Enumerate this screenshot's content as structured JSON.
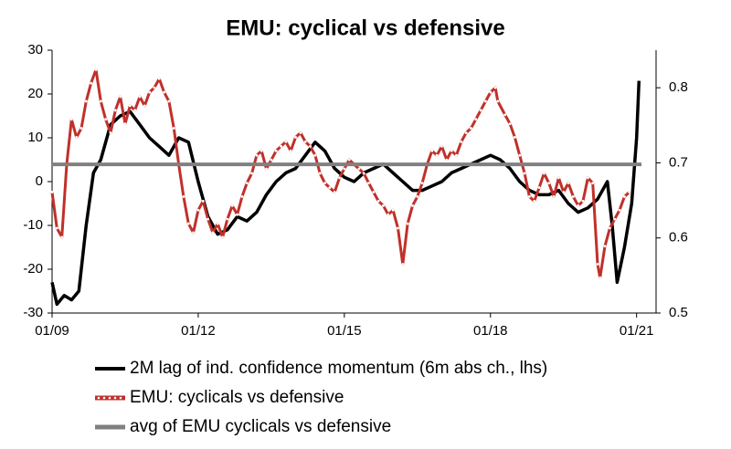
{
  "chart_data": {
    "type": "line",
    "title": "EMU: cyclical vs defensive",
    "xlim": [
      2009,
      2021.4
    ],
    "xticks": [
      {
        "value": 2009,
        "label": "01/09"
      },
      {
        "value": 2012,
        "label": "01/12"
      },
      {
        "value": 2015,
        "label": "01/15"
      },
      {
        "value": 2018,
        "label": "01/18"
      },
      {
        "value": 2021,
        "label": "01/21"
      }
    ],
    "ylim": [
      -30,
      30
    ],
    "yticks": [
      -30,
      -20,
      -10,
      0,
      10,
      20,
      30
    ],
    "y2lim": [
      0.5,
      0.85
    ],
    "y2ticks": [
      0.5,
      0.6,
      0.7,
      0.8
    ],
    "series": [
      {
        "name": "2M lag of ind. confidence momentum (6m abs ch., lhs)",
        "color": "#000000",
        "axis": "y",
        "x": [
          2009.0,
          2009.1,
          2009.25,
          2009.4,
          2009.55,
          2009.7,
          2009.85,
          2010.0,
          2010.2,
          2010.4,
          2010.6,
          2010.8,
          2011.0,
          2011.2,
          2011.4,
          2011.6,
          2011.8,
          2012.0,
          2012.2,
          2012.4,
          2012.6,
          2012.8,
          2013.0,
          2013.2,
          2013.4,
          2013.6,
          2013.8,
          2014.0,
          2014.2,
          2014.4,
          2014.6,
          2014.8,
          2015.0,
          2015.2,
          2015.4,
          2015.6,
          2015.8,
          2016.0,
          2016.2,
          2016.4,
          2016.6,
          2016.8,
          2017.0,
          2017.2,
          2017.4,
          2017.6,
          2017.8,
          2018.0,
          2018.2,
          2018.4,
          2018.6,
          2018.8,
          2019.0,
          2019.2,
          2019.4,
          2019.6,
          2019.8,
          2020.0,
          2020.2,
          2020.4,
          2020.5,
          2020.6,
          2020.75,
          2020.9,
          2021.0,
          2021.05
        ],
        "values": [
          -23,
          -28,
          -26,
          -27,
          -25,
          -10,
          2,
          5,
          13,
          15,
          16,
          13,
          10,
          8,
          6,
          10,
          9,
          0,
          -8,
          -12,
          -11,
          -8,
          -9,
          -7,
          -3,
          0,
          2,
          3,
          6,
          9,
          7,
          3,
          1,
          0,
          2,
          3,
          4,
          2,
          0,
          -2,
          -2,
          -1,
          0,
          2,
          3,
          4,
          5,
          6,
          5,
          3,
          0,
          -2,
          -3,
          -3,
          -2,
          -5,
          -7,
          -6,
          -4,
          0,
          -10,
          -23,
          -15,
          -5,
          10,
          23
        ]
      },
      {
        "name": "EMU: cyclicals vs defensive",
        "color": "#c0302a",
        "axis": "y2",
        "x": [
          2009.0,
          2009.1,
          2009.2,
          2009.3,
          2009.4,
          2009.5,
          2009.6,
          2009.7,
          2009.8,
          2009.9,
          2010.0,
          2010.1,
          2010.2,
          2010.3,
          2010.4,
          2010.5,
          2010.6,
          2010.7,
          2010.8,
          2010.9,
          2011.0,
          2011.1,
          2011.2,
          2011.3,
          2011.4,
          2011.5,
          2011.6,
          2011.7,
          2011.8,
          2011.9,
          2012.0,
          2012.1,
          2012.2,
          2012.3,
          2012.4,
          2012.5,
          2012.6,
          2012.7,
          2012.8,
          2012.9,
          2013.0,
          2013.1,
          2013.2,
          2013.3,
          2013.4,
          2013.5,
          2013.6,
          2013.7,
          2013.8,
          2013.9,
          2014.0,
          2014.1,
          2014.2,
          2014.3,
          2014.4,
          2014.5,
          2014.6,
          2014.7,
          2014.8,
          2014.9,
          2015.0,
          2015.1,
          2015.2,
          2015.3,
          2015.4,
          2015.5,
          2015.6,
          2015.7,
          2015.8,
          2015.9,
          2016.0,
          2016.1,
          2016.2,
          2016.3,
          2016.4,
          2016.5,
          2016.6,
          2016.7,
          2016.8,
          2016.9,
          2017.0,
          2017.1,
          2017.2,
          2017.3,
          2017.4,
          2017.5,
          2017.6,
          2017.7,
          2017.8,
          2017.9,
          2018.0,
          2018.1,
          2018.15,
          2018.3,
          2018.4,
          2018.5,
          2018.6,
          2018.7,
          2018.8,
          2018.9,
          2019.0,
          2019.1,
          2019.2,
          2019.3,
          2019.4,
          2019.5,
          2019.6,
          2019.7,
          2019.8,
          2019.9,
          2020.0,
          2020.1,
          2020.2,
          2020.25,
          2020.35,
          2020.45,
          2020.55,
          2020.65,
          2020.75,
          2020.85
        ],
        "values": [
          0.661,
          0.613,
          0.601,
          0.698,
          0.758,
          0.734,
          0.746,
          0.782,
          0.806,
          0.824,
          0.782,
          0.758,
          0.74,
          0.77,
          0.788,
          0.752,
          0.776,
          0.77,
          0.788,
          0.776,
          0.794,
          0.8,
          0.812,
          0.794,
          0.782,
          0.746,
          0.698,
          0.655,
          0.619,
          0.607,
          0.637,
          0.649,
          0.625,
          0.607,
          0.619,
          0.601,
          0.625,
          0.643,
          0.631,
          0.655,
          0.673,
          0.686,
          0.71,
          0.716,
          0.692,
          0.704,
          0.716,
          0.722,
          0.728,
          0.716,
          0.734,
          0.74,
          0.728,
          0.722,
          0.71,
          0.686,
          0.673,
          0.667,
          0.661,
          0.68,
          0.692,
          0.704,
          0.698,
          0.692,
          0.686,
          0.673,
          0.661,
          0.649,
          0.643,
          0.631,
          0.637,
          0.613,
          0.565,
          0.619,
          0.643,
          0.655,
          0.673,
          0.698,
          0.716,
          0.71,
          0.722,
          0.704,
          0.716,
          0.71,
          0.728,
          0.74,
          0.746,
          0.758,
          0.77,
          0.782,
          0.794,
          0.8,
          0.782,
          0.764,
          0.752,
          0.734,
          0.71,
          0.686,
          0.655,
          0.649,
          0.667,
          0.686,
          0.673,
          0.655,
          0.68,
          0.661,
          0.673,
          0.655,
          0.643,
          0.649,
          0.68,
          0.673,
          0.565,
          0.547,
          0.589,
          0.613,
          0.625,
          0.637,
          0.655,
          0.661
        ]
      },
      {
        "name": "avg of EMU cyclicals vs defensive",
        "color": "#808080",
        "axis": "y2",
        "x": [
          2009.0,
          2021.1
        ],
        "values": [
          0.698,
          0.698
        ]
      }
    ]
  }
}
